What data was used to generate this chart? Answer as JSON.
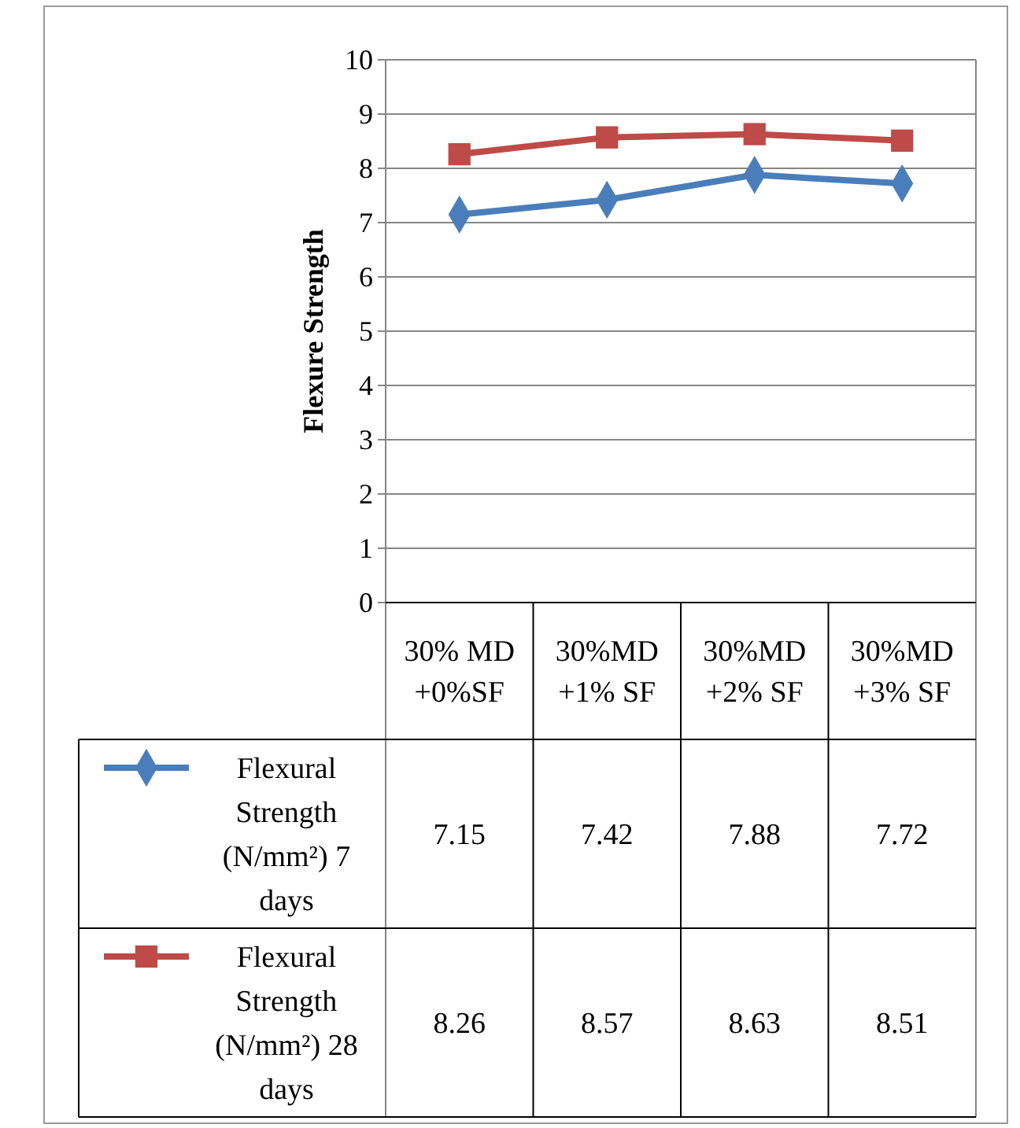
{
  "chart_data": {
    "type": "line",
    "ylabel": "Flexure Strength",
    "categories": [
      "30% MD+0%SF",
      "30%MD+1% SF",
      "30%MD+2% SF",
      "30%MD+3% SF"
    ],
    "series": [
      {
        "name": "Flexural Strength (N/mm²) 7 days",
        "color": "#4a7ebb",
        "marker": "diamond",
        "values": [
          7.15,
          7.42,
          7.88,
          7.72
        ]
      },
      {
        "name": "Flexural Strength (N/mm²) 28 days",
        "color": "#be4b48",
        "marker": "square",
        "values": [
          8.26,
          8.57,
          8.63,
          8.51
        ]
      }
    ],
    "ylim": [
      0,
      10
    ],
    "yticks": [
      0,
      1,
      2,
      3,
      4,
      5,
      6,
      7,
      8,
      9,
      10
    ],
    "grid": "y",
    "legend": "bottom",
    "data_labels": true
  }
}
